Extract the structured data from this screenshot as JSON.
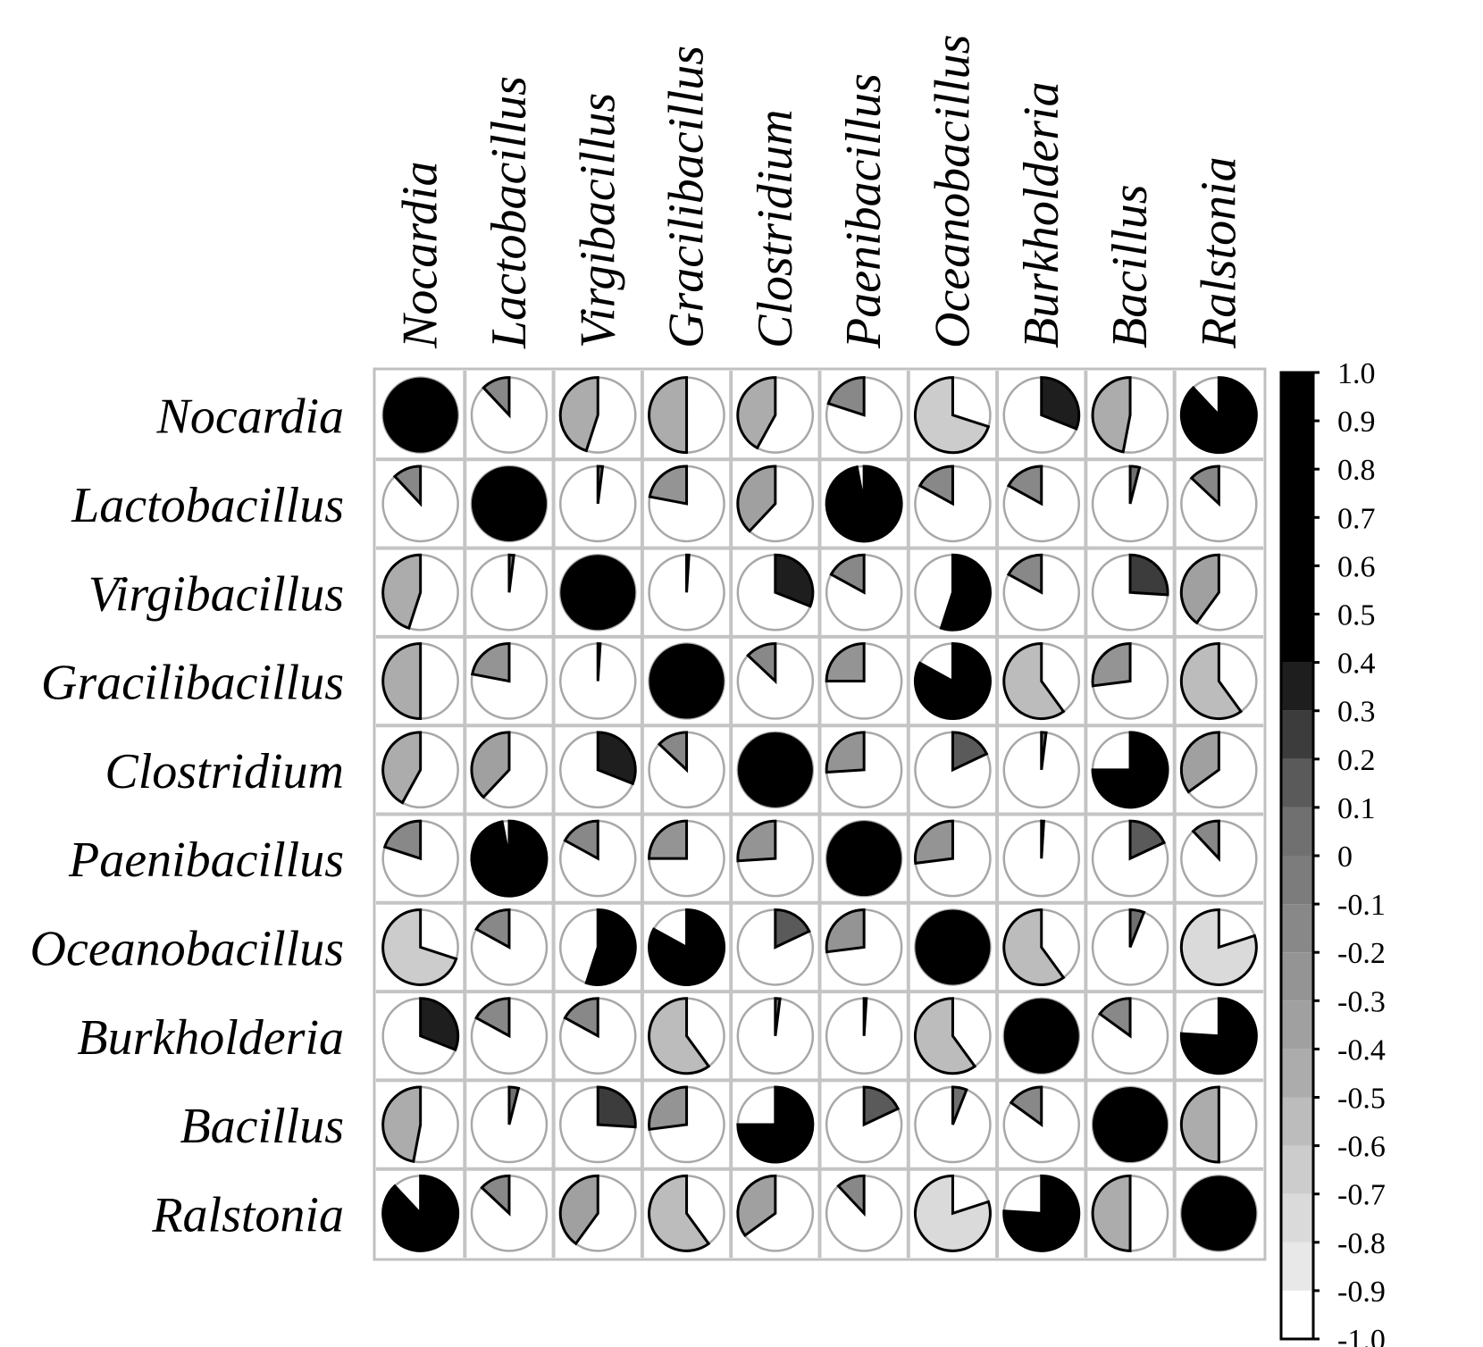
{
  "chart_data": {
    "type": "heatmap",
    "style": "pie-correlation-matrix",
    "title": "",
    "variables": [
      "Nocardia",
      "Lactobacillus",
      "Virgibacillus",
      "Gracilibacillus",
      "Clostridium",
      "Paenibacillus",
      "Oceanobacillus",
      "Burkholderia",
      "Bacillus",
      "Ralstonia"
    ],
    "matrix": [
      [
        1.0,
        -0.12,
        -0.45,
        -0.5,
        -0.42,
        -0.2,
        -0.7,
        0.31,
        -0.47,
        0.88
      ],
      [
        -0.12,
        1.0,
        0.02,
        -0.22,
        -0.38,
        0.97,
        -0.17,
        -0.17,
        0.04,
        -0.13
      ],
      [
        -0.45,
        0.02,
        1.0,
        0.01,
        0.31,
        -0.17,
        0.55,
        -0.17,
        0.26,
        -0.4
      ],
      [
        -0.5,
        -0.22,
        0.01,
        1.0,
        -0.13,
        -0.25,
        0.83,
        -0.6,
        -0.27,
        -0.6
      ],
      [
        -0.42,
        -0.38,
        0.31,
        -0.13,
        1.0,
        -0.26,
        0.18,
        0.02,
        0.75,
        -0.35
      ],
      [
        -0.2,
        0.97,
        -0.17,
        -0.25,
        -0.26,
        1.0,
        -0.27,
        0.01,
        0.18,
        -0.12
      ],
      [
        -0.7,
        -0.17,
        0.55,
        0.83,
        0.18,
        -0.27,
        1.0,
        -0.6,
        0.06,
        -0.8
      ],
      [
        0.31,
        -0.17,
        -0.17,
        -0.6,
        0.02,
        0.01,
        -0.6,
        1.0,
        -0.15,
        0.76
      ],
      [
        -0.47,
        0.04,
        0.26,
        -0.27,
        0.75,
        0.18,
        0.06,
        -0.15,
        1.0,
        -0.5
      ],
      [
        0.88,
        -0.13,
        -0.4,
        -0.6,
        -0.35,
        -0.12,
        -0.8,
        0.76,
        -0.5,
        1.0
      ]
    ],
    "colorbar": {
      "range": [
        -1.0,
        1.0
      ],
      "ticks": [
        "1.0",
        "0.9",
        "0.8",
        "0.7",
        "0.6",
        "0.5",
        "0.4",
        "0.3",
        "0.2",
        "0.1",
        "0",
        "-0.1",
        "-0.2",
        "-0.3",
        "-0.4",
        "-0.5",
        "-0.6",
        "-0.7",
        "-0.8",
        "-0.9",
        "-1.0"
      ],
      "colors": {
        "bins": [
          {
            "min": 0.4,
            "max": 1.0,
            "color": "#000000"
          },
          {
            "min": 0.3,
            "max": 0.4,
            "color": "#1e1e1e"
          },
          {
            "min": 0.2,
            "max": 0.3,
            "color": "#3c3c3c"
          },
          {
            "min": 0.1,
            "max": 0.2,
            "color": "#5a5a5a"
          },
          {
            "min": 0.0,
            "max": 0.1,
            "color": "#707070"
          },
          {
            "min": -0.1,
            "max": 0.0,
            "color": "#7c7c7c"
          },
          {
            "min": -0.2,
            "max": -0.1,
            "color": "#888888"
          },
          {
            "min": -0.3,
            "max": -0.2,
            "color": "#949494"
          },
          {
            "min": -0.4,
            "max": -0.3,
            "color": "#a0a0a0"
          },
          {
            "min": -0.5,
            "max": -0.4,
            "color": "#acacac"
          },
          {
            "min": -0.6,
            "max": -0.5,
            "color": "#bcbcbc"
          },
          {
            "min": -0.7,
            "max": -0.6,
            "color": "#cccccc"
          },
          {
            "min": -0.8,
            "max": -0.7,
            "color": "#dadada"
          },
          {
            "min": -0.9,
            "max": -0.8,
            "color": "#e8e8e8"
          },
          {
            "min": -1.0,
            "max": -0.9,
            "color": "#ffffff"
          }
        ]
      }
    },
    "grid": true,
    "legend": "right"
  }
}
